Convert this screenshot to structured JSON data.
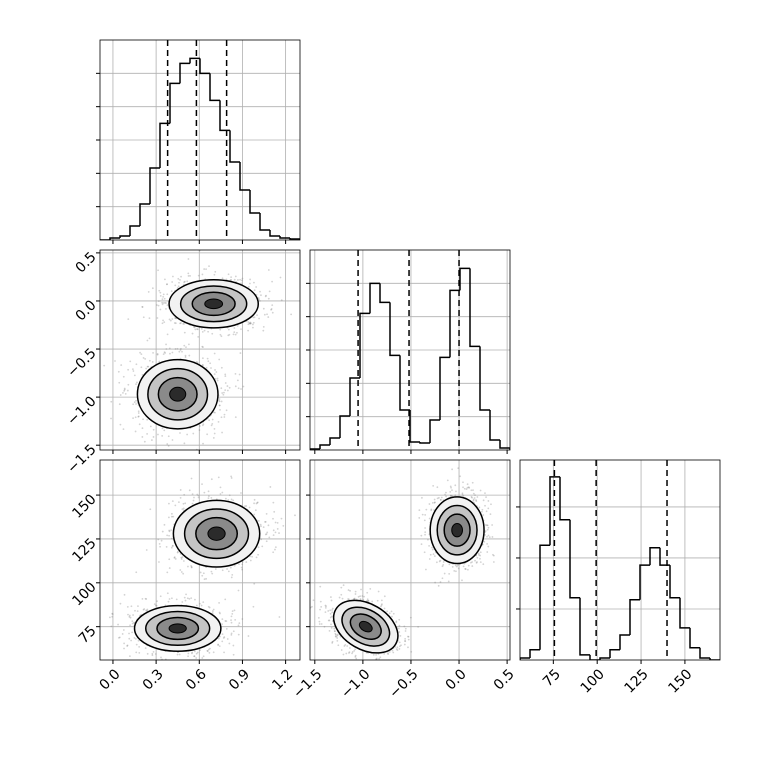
{
  "chart_data": {
    "type": "corner",
    "grid": true,
    "line_color": "#000000",
    "point_color": "#808080",
    "variables": [
      {
        "range": [
          -0.09,
          1.3
        ],
        "ticks": [
          {
            "value": 0,
            "label": "0.0"
          },
          0.3,
          0.6,
          0.9,
          1.2
        ],
        "bins": [
          -0.09,
          -0.0205,
          0.049,
          0.1185,
          0.188,
          0.2575,
          0.327,
          0.3965,
          0.466,
          0.5355,
          0.605,
          0.6745,
          0.744,
          0.8135,
          0.883,
          0.9525,
          1.022,
          1.0915,
          1.161,
          1.2305,
          1.3
        ],
        "counts": [
          0.0,
          0.06,
          0.12,
          0.42,
          1.08,
          2.16,
          3.5,
          4.7,
          5.3,
          5.45,
          5.0,
          4.19,
          3.29,
          2.34,
          1.5,
          0.81,
          0.3,
          0.12,
          0.06,
          0.03
        ],
        "hist_ylim": [
          0,
          6
        ],
        "hist_yticks": [
          1,
          2,
          3,
          4,
          5
        ],
        "quantiles": [
          0.38,
          0.58,
          0.79
        ]
      },
      {
        "range": [
          -1.55,
          0.53
        ],
        "ticks": [
          {
            "value": -1.5,
            "label": "−1.5"
          },
          {
            "value": -1.0,
            "label": "−1.0"
          },
          {
            "value": -0.5,
            "label": "−0.5"
          },
          {
            "value": 0,
            "label": "0.0"
          },
          0.5
        ],
        "bins": [
          -1.55,
          -1.446,
          -1.342,
          -1.238,
          -1.134,
          -1.03,
          -0.926,
          -0.822,
          -0.718,
          -0.614,
          -0.51,
          -0.406,
          -0.302,
          -0.198,
          -0.094,
          0.01,
          0.114,
          0.218,
          0.322,
          0.426,
          0.53
        ],
        "counts": [
          0.03,
          0.15,
          0.36,
          1.02,
          2.16,
          4.1,
          5.0,
          4.43,
          2.84,
          1.2,
          0.24,
          0.21,
          0.9,
          2.78,
          4.79,
          5.45,
          3.11,
          1.2,
          0.3,
          0.06
        ],
        "hist_ylim": [
          0,
          6
        ],
        "hist_yticks": [
          1,
          2,
          3,
          4,
          5
        ],
        "quantiles": [
          -1.05,
          -0.52,
          0.0
        ]
      },
      {
        "range": [
          56,
          170
        ],
        "ticks": [
          75,
          100,
          125,
          150
        ],
        "bins": [
          56,
          61.7,
          67.4,
          73.1,
          78.8,
          84.5,
          90.2,
          95.9,
          101.6,
          107.3,
          113,
          118.7,
          124.4,
          130.1,
          135.8,
          141.5,
          147.2,
          152.9,
          158.6,
          164.3,
          170
        ],
        "counts": [
          0.04,
          0.2,
          2.25,
          3.59,
          2.75,
          1.22,
          0.1,
          0.0,
          0.04,
          0.2,
          0.49,
          1.18,
          1.86,
          2.2,
          1.86,
          1.22,
          0.63,
          0.24,
          0.04,
          0.0
        ],
        "hist_ylim": [
          0,
          3.92
        ],
        "hist_yticks": [
          1,
          2,
          3
        ],
        "quantiles": [
          75.6,
          99.4,
          139.8
        ]
      }
    ],
    "pairs": [
      {
        "x": 0,
        "y": 1,
        "clusters": [
          {
            "center": [
              0.7,
              -0.03
            ],
            "half_width": [
              0.31,
              0.25
            ],
            "angle": 0
          },
          {
            "center": [
              0.45,
              -0.97
            ],
            "half_width": [
              0.28,
              0.36
            ],
            "angle": 0
          }
        ]
      },
      {
        "x": 0,
        "y": 2,
        "clusters": [
          {
            "center": [
              0.72,
              128
            ],
            "half_width": [
              0.3,
              19
            ],
            "angle": 0
          },
          {
            "center": [
              0.45,
              74
            ],
            "half_width": [
              0.3,
              13
            ],
            "angle": 0
          }
        ]
      },
      {
        "x": 1,
        "y": 2,
        "clusters": [
          {
            "center": [
              -0.02,
              130
            ],
            "half_width": [
              0.28,
              19
            ],
            "angle": 0
          },
          {
            "center": [
              -0.97,
              75
            ],
            "half_width": [
              0.36,
              13
            ],
            "angle": 30
          }
        ]
      }
    ]
  }
}
